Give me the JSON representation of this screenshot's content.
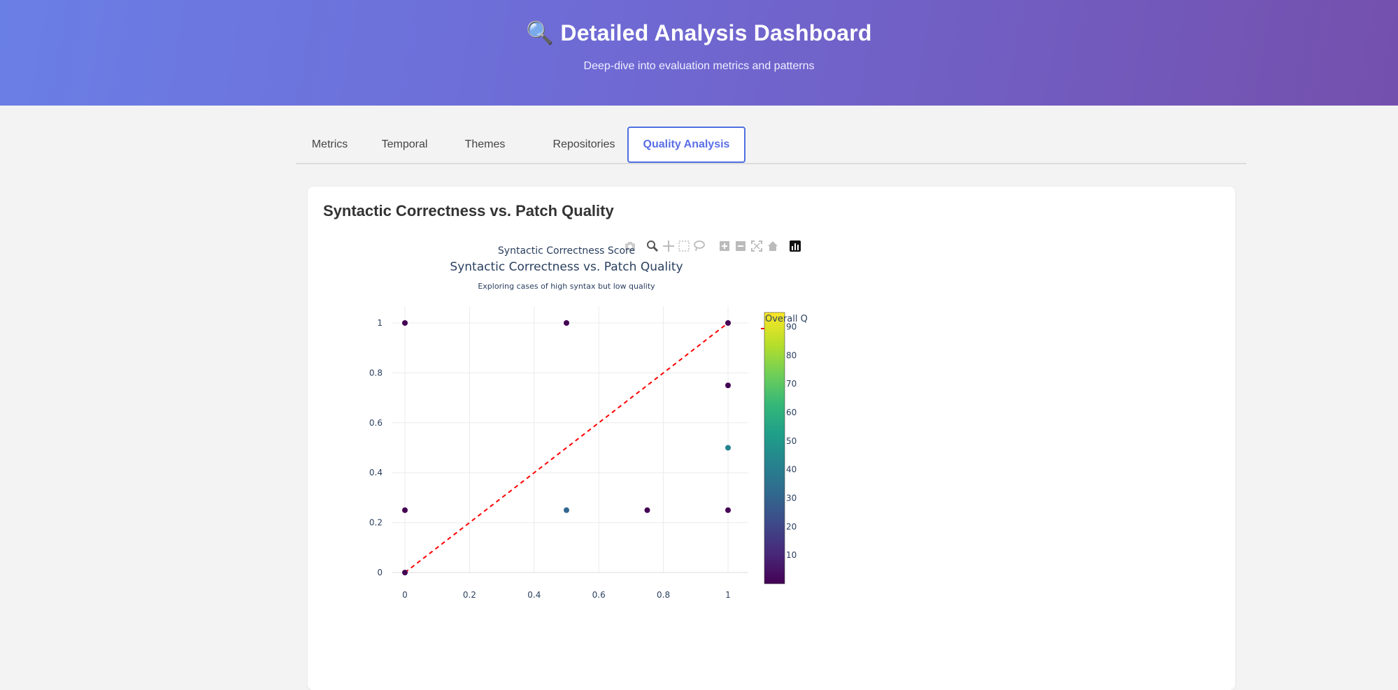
{
  "header": {
    "title": "🔍 Detailed Analysis Dashboard",
    "subtitle": "Deep-dive into evaluation metrics and patterns"
  },
  "tabs": [
    {
      "label": "Metrics",
      "active": false
    },
    {
      "label": "Temporal",
      "active": false
    },
    {
      "label": "Themes",
      "active": false
    },
    {
      "label": "Repositories",
      "active": false
    },
    {
      "label": "Quality Analysis",
      "active": true
    }
  ],
  "card": {
    "title": "Syntactic Correctness vs. Patch Quality"
  },
  "modebar": {
    "icons": [
      "camera-icon",
      "zoom-icon",
      "pan-icon",
      "box-select-icon",
      "lasso-icon",
      "zoom-in-icon",
      "zoom-out-icon",
      "autoscale-icon",
      "reset-axes-icon",
      "plotly-logo-icon"
    ]
  },
  "chart_data": {
    "type": "scatter",
    "title": "Syntactic Correctness vs. Patch Quality",
    "subtitle": "Exploring cases of high syntax but low quality",
    "xlabel": "Syntactic Correctness Score",
    "ylabel": "",
    "xlim": [
      0,
      1
    ],
    "ylim": [
      0,
      1
    ],
    "x_ticks": [
      "0",
      "0.2",
      "0.4",
      "0.6",
      "0.8",
      "1"
    ],
    "y_ticks": [
      "0",
      "0.2",
      "0.4",
      "0.6",
      "0.8",
      "1"
    ],
    "grid": true,
    "points": [
      {
        "x": 0,
        "y": 1,
        "quality": 2
      },
      {
        "x": 0.5,
        "y": 1,
        "quality": 5
      },
      {
        "x": 1,
        "y": 1,
        "quality": 5
      },
      {
        "x": 1,
        "y": 0.75,
        "quality": 3
      },
      {
        "x": 1,
        "y": 0.5,
        "quality": 45
      },
      {
        "x": 0,
        "y": 0.25,
        "quality": 3
      },
      {
        "x": 0.5,
        "y": 0.25,
        "quality": 30
      },
      {
        "x": 0.75,
        "y": 0.25,
        "quality": 5
      },
      {
        "x": 1,
        "y": 0.25,
        "quality": 3
      },
      {
        "x": 0,
        "y": 0,
        "quality": 2
      }
    ],
    "reference_line": {
      "from": [
        0,
        0
      ],
      "to": [
        1,
        1
      ],
      "color": "#ff0000",
      "style": "dashed"
    },
    "colorbar": {
      "title": "Overall Q",
      "min": 0,
      "max": 95,
      "ticks": [
        "10",
        "20",
        "30",
        "40",
        "50",
        "60",
        "70",
        "80",
        "90"
      ],
      "colorscale": "viridis"
    }
  }
}
